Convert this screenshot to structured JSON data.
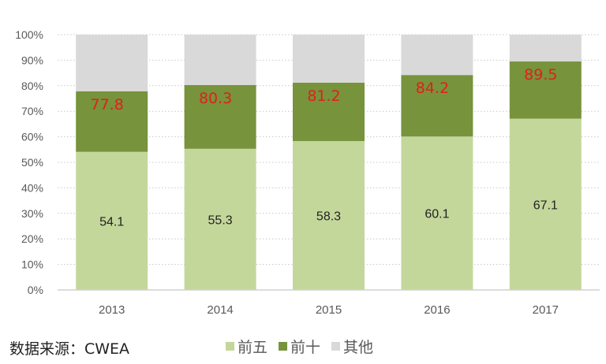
{
  "chart_data": {
    "type": "bar",
    "stacked": true,
    "title": "",
    "xlabel": "",
    "ylabel": "",
    "ylim": [
      0,
      100
    ],
    "yticks": [
      "0%",
      "10%",
      "20%",
      "30%",
      "40%",
      "50%",
      "60%",
      "70%",
      "80%",
      "90%",
      "100%"
    ],
    "categories": [
      "2013",
      "2014",
      "2015",
      "2016",
      "2017"
    ],
    "series": [
      {
        "name": "前五",
        "color": "#c4d79b",
        "values": [
          54.1,
          55.3,
          58.3,
          60.1,
          67.1
        ]
      },
      {
        "name": "前十",
        "color": "#77933c",
        "values": [
          23.7,
          25.0,
          22.9,
          24.1,
          22.4
        ]
      },
      {
        "name": "其他",
        "color": "#d9d9d9",
        "values": [
          22.2,
          19.7,
          18.8,
          15.8,
          10.5
        ]
      }
    ],
    "labels_top5": [
      "54.1",
      "55.3",
      "58.3",
      "60.1",
      "67.1"
    ],
    "labels_top10_cumulative": [
      "77.8",
      "80.3",
      "81.2",
      "84.2",
      "89.5"
    ],
    "label_colors": {
      "top5": "#222222",
      "top10": "#e0201b"
    },
    "grid": true,
    "legend_position": "bottom"
  },
  "source": "数据来源：CWEA"
}
